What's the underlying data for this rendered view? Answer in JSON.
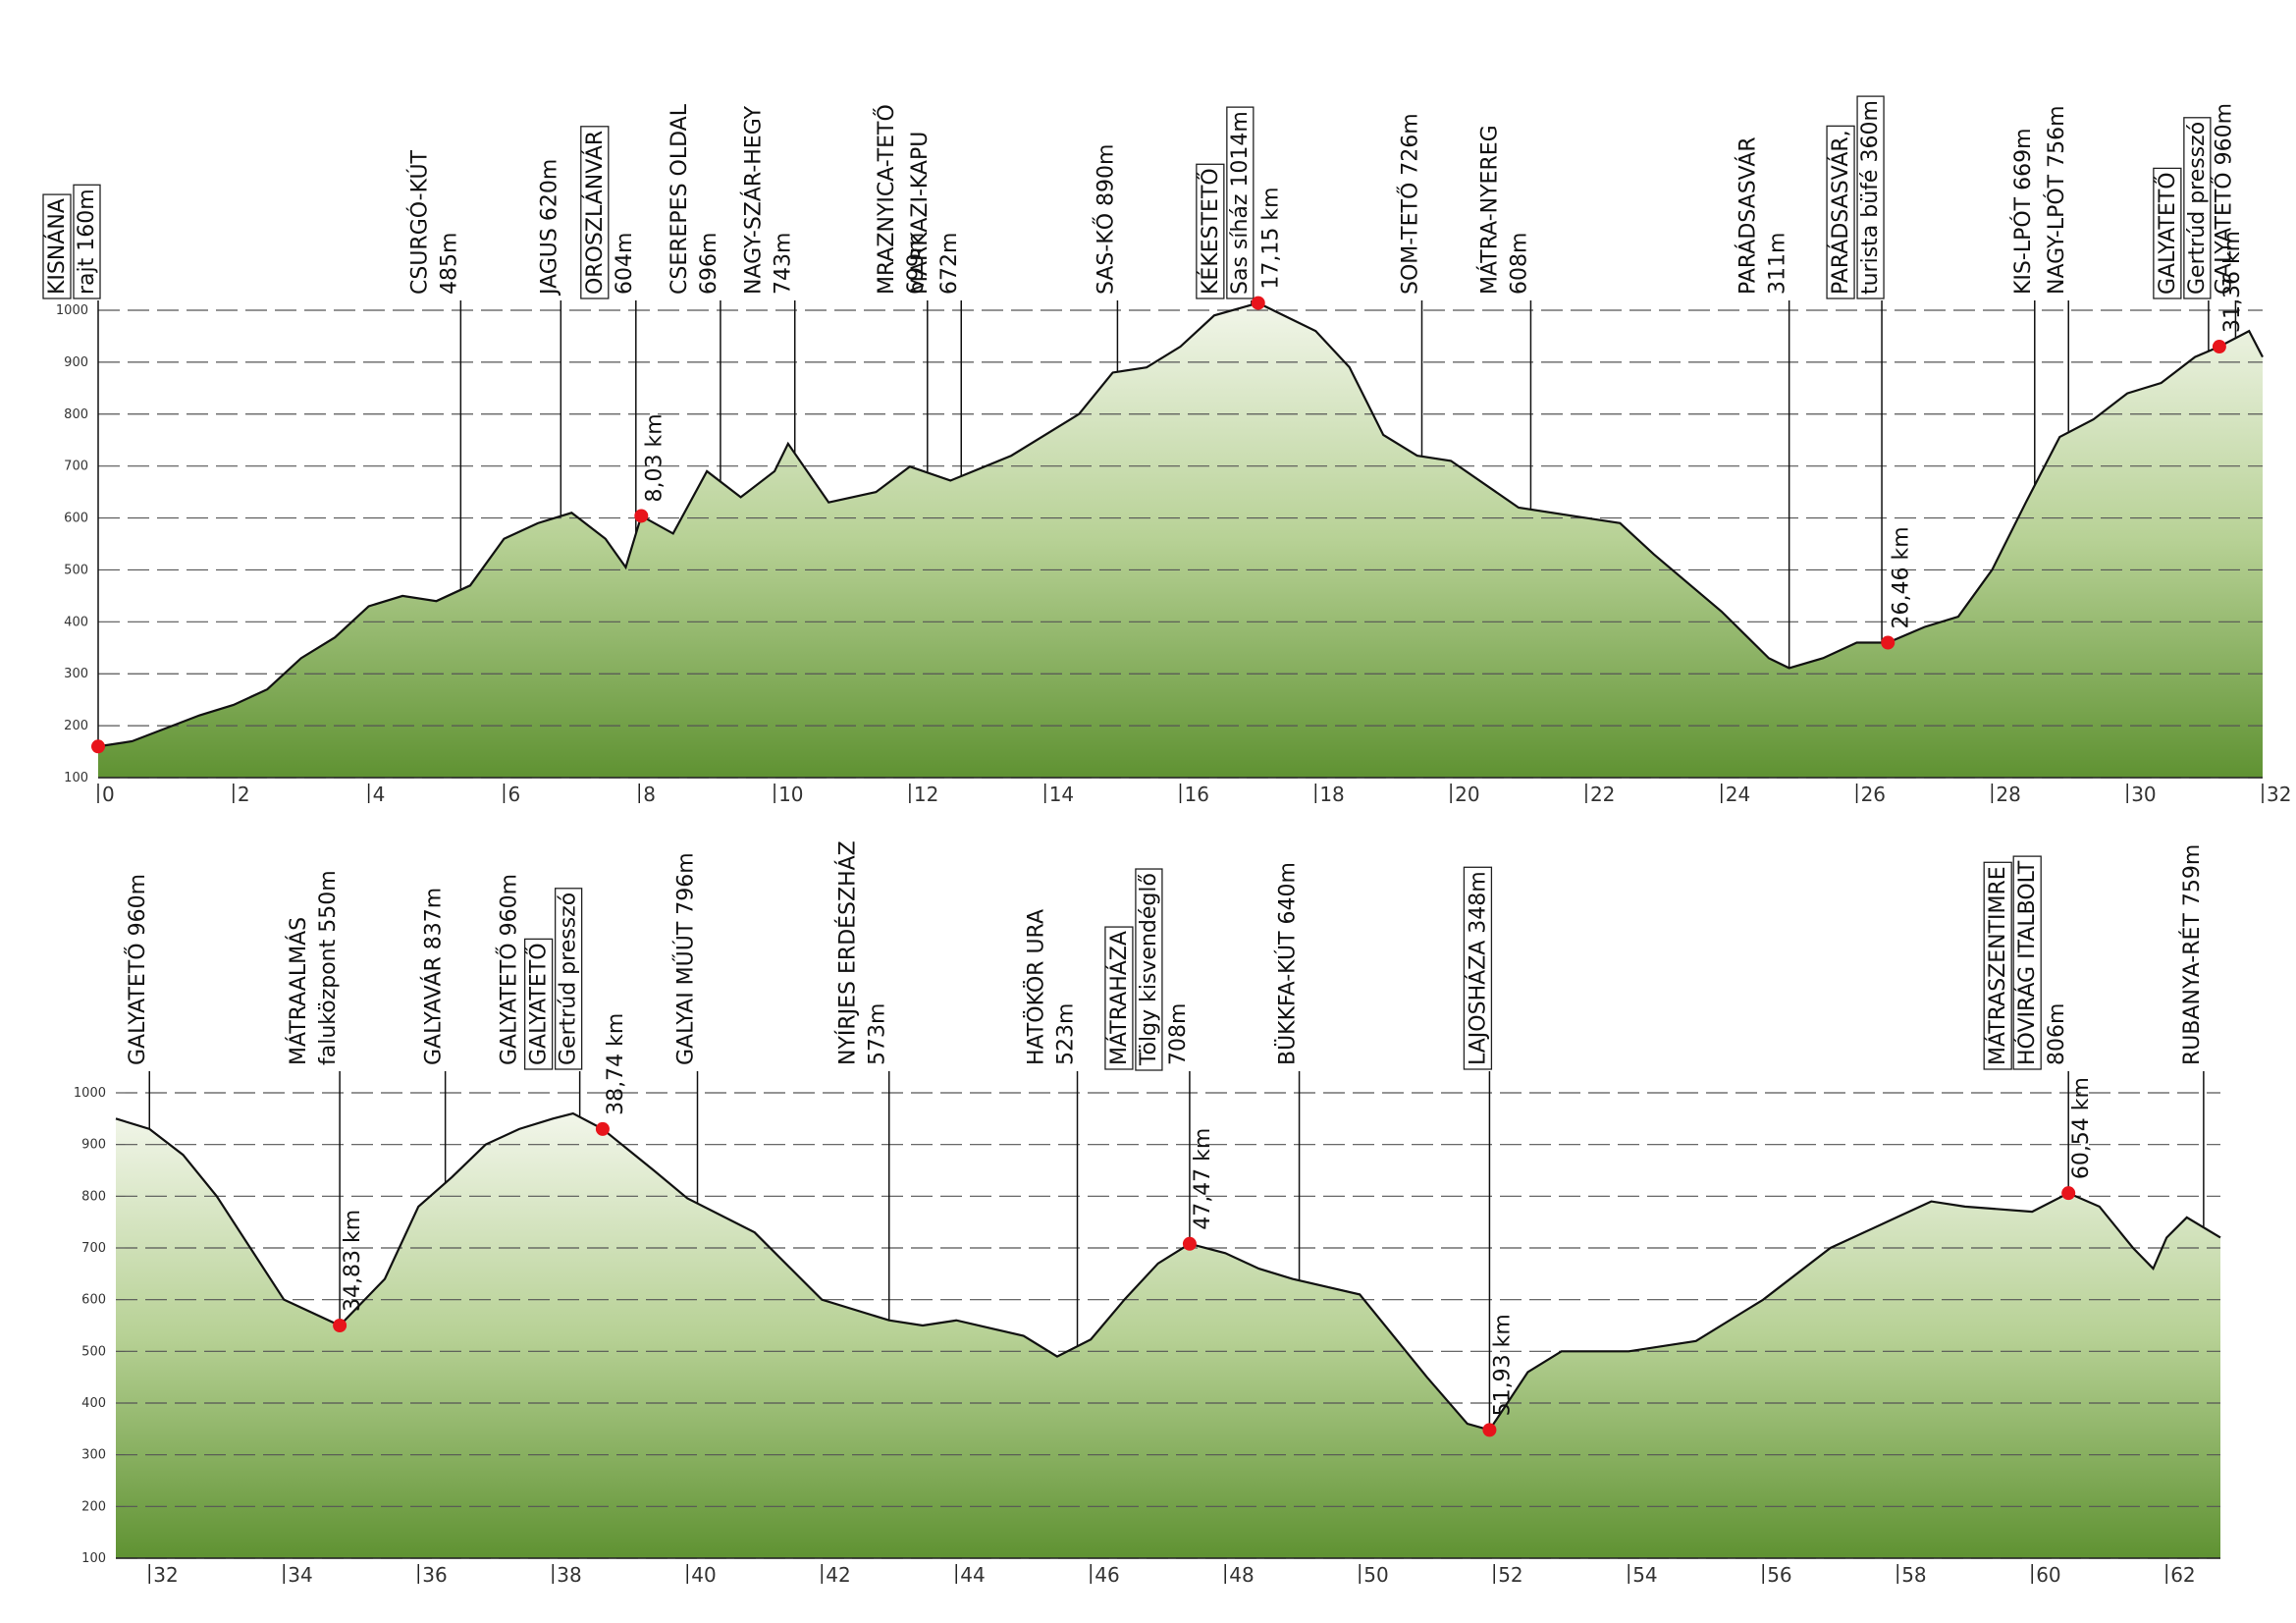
{
  "chart_data": [
    {
      "type": "area",
      "xlim": [
        0,
        32
      ],
      "ylim": [
        100,
        1000
      ],
      "xticks": [
        0,
        2,
        4,
        6,
        8,
        10,
        12,
        14,
        16,
        18,
        20,
        22,
        24,
        26,
        28,
        30,
        32
      ],
      "yticks": [
        100,
        200,
        300,
        400,
        500,
        600,
        700,
        800,
        900,
        1000
      ],
      "grid": true,
      "x": [
        0,
        0.5,
        1,
        1.5,
        2,
        2.5,
        3,
        3.5,
        4,
        4.5,
        5,
        5.5,
        6,
        6.5,
        7,
        7.5,
        7.8,
        8.03,
        8.5,
        9,
        9.5,
        10,
        10.2,
        10.8,
        11.5,
        12,
        12.6,
        13.5,
        14.5,
        15,
        15.5,
        16,
        16.5,
        17.15,
        18,
        18.5,
        19,
        19.5,
        20,
        21,
        22,
        22.5,
        23,
        24,
        24.7,
        25,
        25.5,
        26,
        26.46,
        27,
        27.5,
        28,
        28.5,
        29,
        29.5,
        30,
        30.5,
        31,
        31.36,
        31.8,
        32
      ],
      "values": [
        160,
        170,
        195,
        220,
        240,
        270,
        330,
        370,
        430,
        450,
        440,
        470,
        560,
        590,
        610,
        560,
        505,
        604,
        570,
        690,
        640,
        690,
        743,
        630,
        650,
        699,
        672,
        720,
        800,
        880,
        890,
        930,
        990,
        1014,
        960,
        890,
        760,
        720,
        710,
        620,
        600,
        590,
        530,
        420,
        330,
        311,
        330,
        360,
        360,
        390,
        410,
        500,
        630,
        756,
        790,
        840,
        860,
        910,
        930,
        960,
        910
      ],
      "labels": [
        {
          "x": 0,
          "lines": [
            {
              "text": "KISNÁNA",
              "boxed": true
            },
            {
              "text": "rajt 160m",
              "boxed": true
            }
          ]
        },
        {
          "x": 5.36,
          "lines": [
            "CSURGÓ-KÚT",
            "485m"
          ]
        },
        {
          "x": 6.84,
          "lines": [
            "JAGUS 620m"
          ]
        },
        {
          "x": 7.95,
          "lines": [
            {
              "text": "OROSZLÁNVÁR",
              "boxed": true
            },
            "604m"
          ]
        },
        {
          "x": 9.2,
          "lines": [
            "CSEREPES OLDAL",
            "696m"
          ]
        },
        {
          "x": 10.3,
          "lines": [
            "NAGY-SZÁR-HEGY",
            "743m"
          ]
        },
        {
          "x": 12.26,
          "lines": [
            "MRAZNYICA-TETŐ",
            "699m"
          ]
        },
        {
          "x": 12.76,
          "lines": [
            "MARKAZI-KAPU",
            "672m"
          ]
        },
        {
          "x": 15.07,
          "lines": [
            "SAS-KŐ 890m"
          ]
        },
        {
          "x": 17.05,
          "lines": [
            {
              "text": "KÉKESTETŐ",
              "boxed": true
            },
            {
              "text": "Sas síház 1014m",
              "boxed": true
            }
          ]
        },
        {
          "x": 19.57,
          "lines": [
            "SOM-TETŐ 726m"
          ]
        },
        {
          "x": 21.18,
          "lines": [
            "MÁTRA-NYEREG",
            "608m"
          ]
        },
        {
          "x": 25.0,
          "lines": [
            "PARÁDSASVÁR",
            "311m"
          ]
        },
        {
          "x": 26.37,
          "lines": [
            {
              "text": "PARÁDSASVÁR,",
              "boxed": true
            },
            {
              "text": "turista büfé 360m",
              "boxed": true
            }
          ]
        },
        {
          "x": 28.63,
          "lines": [
            "KIS-LPÓT 669m"
          ]
        },
        {
          "x": 29.13,
          "lines": [
            "NAGY-LPÓT 756m"
          ]
        },
        {
          "x": 31.2,
          "lines": [
            {
              "text": "GALYATETŐ",
              "boxed": true
            },
            {
              "text": "Gertrúd presszó",
              "boxed": true
            }
          ]
        },
        {
          "x": 31.6,
          "lines": [
            "GALYATETŐ 960m"
          ]
        }
      ],
      "markers": [
        {
          "x": 0,
          "elevation": 160
        },
        {
          "x": 8.03,
          "elevation": 604,
          "label": "8,03 km"
        },
        {
          "x": 17.15,
          "elevation": 1014,
          "label": "17,15 km"
        },
        {
          "x": 26.46,
          "elevation": 360,
          "label": "26,46 km"
        },
        {
          "x": 31.36,
          "elevation": 930,
          "label": "31,36 km"
        }
      ]
    },
    {
      "type": "area",
      "xlim": [
        31.5,
        62.8
      ],
      "ylim": [
        100,
        1000
      ],
      "xticks": [
        32,
        34,
        36,
        38,
        40,
        42,
        44,
        46,
        48,
        50,
        52,
        54,
        56,
        58,
        60,
        62
      ],
      "yticks": [
        100,
        200,
        300,
        400,
        500,
        600,
        700,
        800,
        900,
        1000
      ],
      "grid": true,
      "x": [
        31.5,
        32,
        32.5,
        33,
        33.5,
        34,
        34.83,
        35.5,
        36,
        36.5,
        37,
        37.5,
        38,
        38.3,
        38.74,
        39.5,
        40,
        41,
        42,
        43,
        43.5,
        44,
        45,
        45.5,
        46,
        46.5,
        47,
        47.47,
        48,
        48.5,
        49,
        50,
        51,
        51.6,
        51.93,
        52.5,
        53,
        54,
        55,
        56,
        57,
        58,
        58.5,
        59,
        60,
        60.54,
        61,
        61.5,
        61.8,
        62,
        62.3,
        62.8
      ],
      "values": [
        950,
        930,
        880,
        800,
        700,
        600,
        550,
        640,
        780,
        837,
        900,
        930,
        950,
        960,
        930,
        850,
        796,
        730,
        600,
        560,
        550,
        560,
        530,
        490,
        523,
        600,
        670,
        708,
        690,
        660,
        640,
        610,
        450,
        360,
        348,
        460,
        500,
        500,
        520,
        600,
        700,
        760,
        790,
        780,
        770,
        806,
        780,
        700,
        660,
        720,
        759,
        720
      ],
      "labels": [
        {
          "x": 32.0,
          "lines": [
            "GALYATETŐ 960m"
          ]
        },
        {
          "x": 34.83,
          "lines": [
            "MÁTRAALMÁS",
            "faluközpont 550m"
          ]
        },
        {
          "x": 36.4,
          "lines": [
            "GALYAVÁR 837m"
          ]
        },
        {
          "x": 38.4,
          "lines": [
            "GALYATETŐ 960m",
            {
              "text": "GALYATETŐ",
              "boxed": true
            },
            {
              "text": "Gertrúd presszó",
              "boxed": true
            }
          ]
        },
        {
          "x": 40.15,
          "lines": [
            "GALYAI MŰÚT 796m"
          ]
        },
        {
          "x": 43.0,
          "lines": [
            "NYÍRJES ERDÉSZHÁZ",
            "573m"
          ]
        },
        {
          "x": 45.8,
          "lines": [
            "HATÖKÖR URA",
            "523m"
          ]
        },
        {
          "x": 47.47,
          "lines": [
            {
              "text": "MÁTRAHÁZA",
              "boxed": true
            },
            {
              "text": "Tölgy kisvendéglő",
              "boxed": true
            },
            "708m"
          ]
        },
        {
          "x": 49.1,
          "lines": [
            "BÜKKFA-KÚT 640m"
          ]
        },
        {
          "x": 51.93,
          "lines": [
            {
              "text": "LAJOSHÁZA 348m",
              "boxed": true
            }
          ]
        },
        {
          "x": 60.54,
          "lines": [
            {
              "text": "MÁTRASZENTIMRE",
              "boxed": true
            },
            {
              "text": "HÓVIRÁG ITALBOLT",
              "boxed": true
            },
            "806m"
          ]
        },
        {
          "x": 62.55,
          "lines": [
            "RUBANYA-RÉT 759m"
          ]
        }
      ],
      "markers": [
        {
          "x": 34.83,
          "elevation": 550,
          "label": "34,83 km"
        },
        {
          "x": 38.74,
          "elevation": 930,
          "label": "38,74 km"
        },
        {
          "x": 47.47,
          "elevation": 708,
          "label": "47,47 km"
        },
        {
          "x": 51.93,
          "elevation": 348,
          "label": "51,93 km"
        },
        {
          "x": 60.54,
          "elevation": 806,
          "label": "60,54 km"
        }
      ]
    }
  ]
}
